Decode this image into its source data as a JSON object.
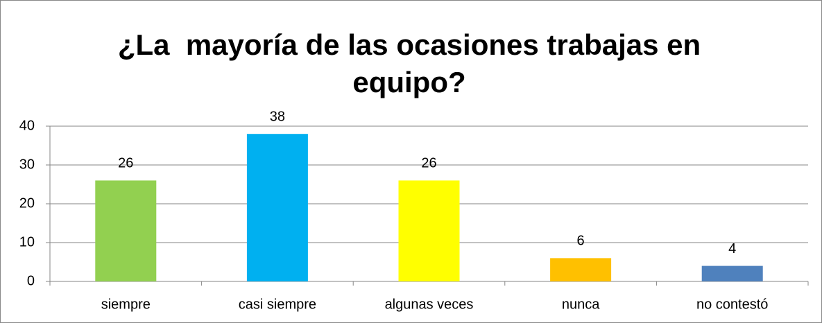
{
  "chart_data": {
    "type": "bar",
    "title": "¿La  mayoría de las ocasiones trabajas en equipo?",
    "categories": [
      "siempre",
      "casi siempre",
      "algunas veces",
      "nunca",
      "no contestó"
    ],
    "values": [
      26,
      38,
      26,
      6,
      4
    ],
    "colors": [
      "#92d050",
      "#00b0f0",
      "#ffff00",
      "#ffc000",
      "#4f81bd"
    ],
    "ylim": [
      0,
      40
    ],
    "yticks": [
      0,
      10,
      20,
      30,
      40
    ],
    "grid": true
  }
}
